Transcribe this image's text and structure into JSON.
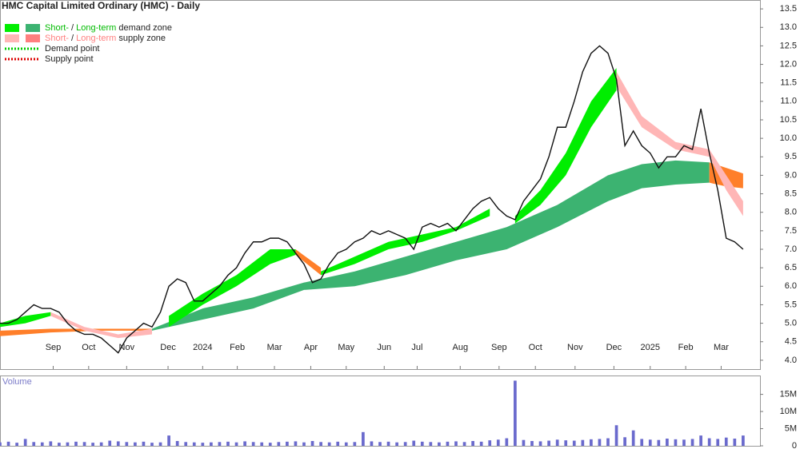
{
  "chart_data": [
    {
      "type": "line",
      "title": "HMC Capital Limited Ordinary (HMC) - Daily",
      "color": "#111111",
      "x": [
        0,
        1,
        2,
        3,
        4,
        5,
        6,
        7,
        8,
        9,
        10,
        11,
        12,
        13,
        14,
        15,
        16,
        17,
        18,
        19,
        20,
        21,
        22,
        23,
        24,
        25,
        26,
        27,
        28,
        29,
        30,
        31,
        32,
        33,
        34,
        35,
        36,
        37,
        38,
        39,
        40,
        41,
        42,
        43,
        44,
        45,
        46,
        47,
        48,
        49,
        50,
        51,
        52,
        53,
        54,
        55,
        56,
        57,
        58,
        59,
        60,
        61,
        62,
        63,
        64,
        65,
        66,
        67,
        68,
        69,
        70,
        71,
        72,
        73,
        74,
        75,
        76,
        77,
        78,
        79,
        80,
        81,
        82,
        83,
        84,
        85,
        86,
        87,
        88
      ],
      "values": [
        5.0,
        5.0,
        5.1,
        5.3,
        5.5,
        5.4,
        5.4,
        5.3,
        5.0,
        4.8,
        4.7,
        4.7,
        4.6,
        4.4,
        4.2,
        4.6,
        4.8,
        5.0,
        4.9,
        5.3,
        6.0,
        6.2,
        6.1,
        5.6,
        5.6,
        5.8,
        6.0,
        6.3,
        6.5,
        6.9,
        7.2,
        7.2,
        7.3,
        7.3,
        7.2,
        6.9,
        6.6,
        6.1,
        6.2,
        6.6,
        6.9,
        7.0,
        7.2,
        7.3,
        7.5,
        7.4,
        7.5,
        7.4,
        7.3,
        7.0,
        7.6,
        7.7,
        7.6,
        7.7,
        7.5,
        7.8,
        8.1,
        8.3,
        8.4,
        8.1,
        7.9,
        7.8,
        8.3,
        8.6,
        8.9,
        9.5,
        10.3,
        10.3,
        11.0,
        11.8,
        12.3,
        12.5,
        12.3,
        11.6,
        9.8,
        10.2,
        9.8,
        9.6,
        9.2,
        9.5,
        9.5,
        9.8,
        9.7,
        10.8,
        9.6,
        8.6,
        7.3,
        7.2,
        7.0
      ],
      "zones": [
        {
          "color": "#ff7f2a",
          "x": [
            0,
            6,
            12,
            18
          ],
          "upper": [
            4.8,
            4.85,
            4.85,
            4.85
          ],
          "lower": [
            4.65,
            4.75,
            4.8,
            4.8
          ]
        },
        {
          "color": "#3cb371",
          "x": [
            18,
            24,
            30,
            36,
            42,
            48,
            54,
            60,
            66,
            72,
            76,
            80,
            84
          ],
          "upper": [
            4.85,
            5.4,
            5.7,
            6.1,
            6.4,
            6.8,
            7.2,
            7.6,
            8.2,
            9.0,
            9.3,
            9.4,
            9.35
          ],
          "lower": [
            4.8,
            5.1,
            5.4,
            5.9,
            6.0,
            6.3,
            6.7,
            7.0,
            7.6,
            8.3,
            8.65,
            8.75,
            8.8
          ]
        },
        {
          "color": "#ff7f2a",
          "x": [
            84,
            86,
            88
          ],
          "upper": [
            9.35,
            9.2,
            9.05
          ],
          "lower": [
            8.8,
            8.7,
            8.65
          ]
        },
        {
          "color": "#00ee00",
          "x": [
            0,
            3,
            6
          ],
          "upper": [
            5.0,
            5.2,
            5.3
          ],
          "lower": [
            4.9,
            5.0,
            5.2
          ]
        },
        {
          "color": "#ffb6b6",
          "x": [
            6,
            10,
            14,
            18
          ],
          "upper": [
            5.3,
            4.9,
            4.7,
            4.85
          ],
          "lower": [
            5.2,
            4.8,
            4.6,
            4.7
          ]
        },
        {
          "color": "#00ee00",
          "x": [
            20,
            24,
            28,
            32,
            35
          ],
          "upper": [
            5.2,
            5.8,
            6.3,
            7.0,
            7.0
          ],
          "lower": [
            4.9,
            5.5,
            6.0,
            6.6,
            6.85
          ]
        },
        {
          "color": "#ff7f2a",
          "x": [
            35,
            38
          ],
          "upper": [
            7.0,
            6.5
          ],
          "lower": [
            6.85,
            6.3
          ]
        },
        {
          "color": "#00ee00",
          "x": [
            38,
            42,
            46,
            50,
            54,
            58
          ],
          "upper": [
            6.4,
            6.8,
            7.2,
            7.4,
            7.6,
            8.1
          ],
          "lower": [
            6.3,
            6.6,
            7.0,
            7.2,
            7.5,
            7.9
          ]
        },
        {
          "color": "#00ee00",
          "x": [
            61,
            64,
            67,
            70,
            73
          ],
          "upper": [
            7.9,
            8.6,
            9.6,
            11.0,
            11.9
          ],
          "lower": [
            7.7,
            8.2,
            9.0,
            10.3,
            11.3
          ]
        },
        {
          "color": "#ffb6b6",
          "x": [
            73,
            76,
            80,
            84,
            86,
            88
          ],
          "upper": [
            11.8,
            10.6,
            9.9,
            9.7,
            9.0,
            8.3
          ],
          "lower": [
            11.4,
            10.3,
            9.7,
            9.5,
            8.6,
            7.9
          ]
        }
      ],
      "legend": [
        {
          "colors": [
            "#00ee00",
            "#3cb371"
          ],
          "text_color": "#00bb00",
          "short": "Short-",
          "sep": " / ",
          "long": "Long-term",
          "rest": " demand zone"
        },
        {
          "colors": [
            "#ffb6b6",
            "#ff7f7f"
          ],
          "text_color": "#ff8080",
          "short": "Short-",
          "sep": " / ",
          "long": "Long-term",
          "rest": " supply zone"
        }
      ],
      "points": [
        {
          "color": "#00cc00",
          "label": "Demand point"
        },
        {
          "color": "#dd0000",
          "label": "Supply point"
        }
      ],
      "xlim": [
        0,
        90
      ],
      "xticks": [
        {
          "value": 6.3,
          "label": "Sep"
        },
        {
          "value": 10.5,
          "label": "Oct"
        },
        {
          "value": 15,
          "label": "Nov"
        },
        {
          "value": 19.9,
          "label": "Dec"
        },
        {
          "value": 24,
          "label": "2024"
        },
        {
          "value": 28.1,
          "label": "Feb"
        },
        {
          "value": 32.5,
          "label": "Mar"
        },
        {
          "value": 36.8,
          "label": "Apr"
        },
        {
          "value": 41,
          "label": "May"
        },
        {
          "value": 45.5,
          "label": "Jun"
        },
        {
          "value": 49.4,
          "label": "Jul"
        },
        {
          "value": 54.5,
          "label": "Aug"
        },
        {
          "value": 59.1,
          "label": "Sep"
        },
        {
          "value": 63.4,
          "label": "Oct"
        },
        {
          "value": 68.1,
          "label": "Nov"
        },
        {
          "value": 72.7,
          "label": "Dec"
        },
        {
          "value": 77,
          "label": "2025"
        },
        {
          "value": 81.2,
          "label": "Feb"
        },
        {
          "value": 85.4,
          "label": "Mar"
        }
      ],
      "ylim": [
        3.76,
        13.74
      ],
      "yticks": [
        {
          "value": 4,
          "label": "4.0"
        },
        4.5,
        {
          "value": 5,
          "label": "5.0"
        },
        5.5,
        {
          "value": 6,
          "label": "6.0"
        },
        6.5,
        {
          "value": 7,
          "label": "7.0"
        },
        7.5,
        {
          "value": 8,
          "label": "8.0"
        },
        8.5,
        {
          "value": 9,
          "label": "9.0"
        },
        9.5,
        {
          "value": 10,
          "label": "10.0"
        },
        10.5,
        {
          "value": 11,
          "label": "11.0"
        },
        11.5,
        {
          "value": 12,
          "label": "12.0"
        },
        12.5,
        {
          "value": 13,
          "label": "13.0"
        },
        13.5
      ]
    },
    {
      "type": "bar",
      "title": "Volume",
      "color": "#6a6acd",
      "x": [
        0,
        1,
        2,
        3,
        4,
        5,
        6,
        7,
        8,
        9,
        10,
        11,
        12,
        13,
        14,
        15,
        16,
        17,
        18,
        19,
        20,
        21,
        22,
        23,
        24,
        25,
        26,
        27,
        28,
        29,
        30,
        31,
        32,
        33,
        34,
        35,
        36,
        37,
        38,
        39,
        40,
        41,
        42,
        43,
        44,
        45,
        46,
        47,
        48,
        49,
        50,
        51,
        52,
        53,
        54,
        55,
        56,
        57,
        58,
        59,
        60,
        61,
        62,
        63,
        64,
        65,
        66,
        67,
        68,
        69,
        70,
        71,
        72,
        73,
        74,
        75,
        76,
        77,
        78,
        79,
        80,
        81,
        82,
        83,
        84,
        85,
        86,
        87,
        88
      ],
      "values": [
        1000000,
        1200000,
        900000,
        2000000,
        1100000,
        1000000,
        1300000,
        900000,
        1000000,
        1200000,
        1100000,
        900000,
        1000000,
        1500000,
        1300000,
        1100000,
        1000000,
        1200000,
        900000,
        1000000,
        3000000,
        1400000,
        1100000,
        1000000,
        900000,
        1000000,
        1100000,
        1200000,
        1000000,
        1300000,
        1100000,
        1000000,
        900000,
        1100000,
        1200000,
        1300000,
        1000000,
        1400000,
        1100000,
        1000000,
        1200000,
        1000000,
        1100000,
        4000000,
        1300000,
        1100000,
        1200000,
        1000000,
        1100000,
        1500000,
        1200000,
        1100000,
        1000000,
        1200000,
        1300000,
        1100000,
        1400000,
        1200000,
        1600000,
        1800000,
        2200000,
        19000000,
        1700000,
        1400000,
        1300000,
        1500000,
        1800000,
        1600000,
        1500000,
        1700000,
        1900000,
        2000000,
        2200000,
        6000000,
        2500000,
        4500000,
        2000000,
        1800000,
        1700000,
        2100000,
        1900000,
        1800000,
        2000000,
        3000000,
        2200000,
        2000000,
        2400000,
        2100000,
        3000000
      ],
      "xlim": [
        0,
        90
      ],
      "ylim": [
        0,
        20500000
      ],
      "yticks": [
        0,
        {
          "value": 5000000,
          "label": "5M"
        },
        {
          "value": 10000000,
          "label": "10M"
        },
        {
          "value": 15000000,
          "label": "15M"
        }
      ]
    }
  ]
}
